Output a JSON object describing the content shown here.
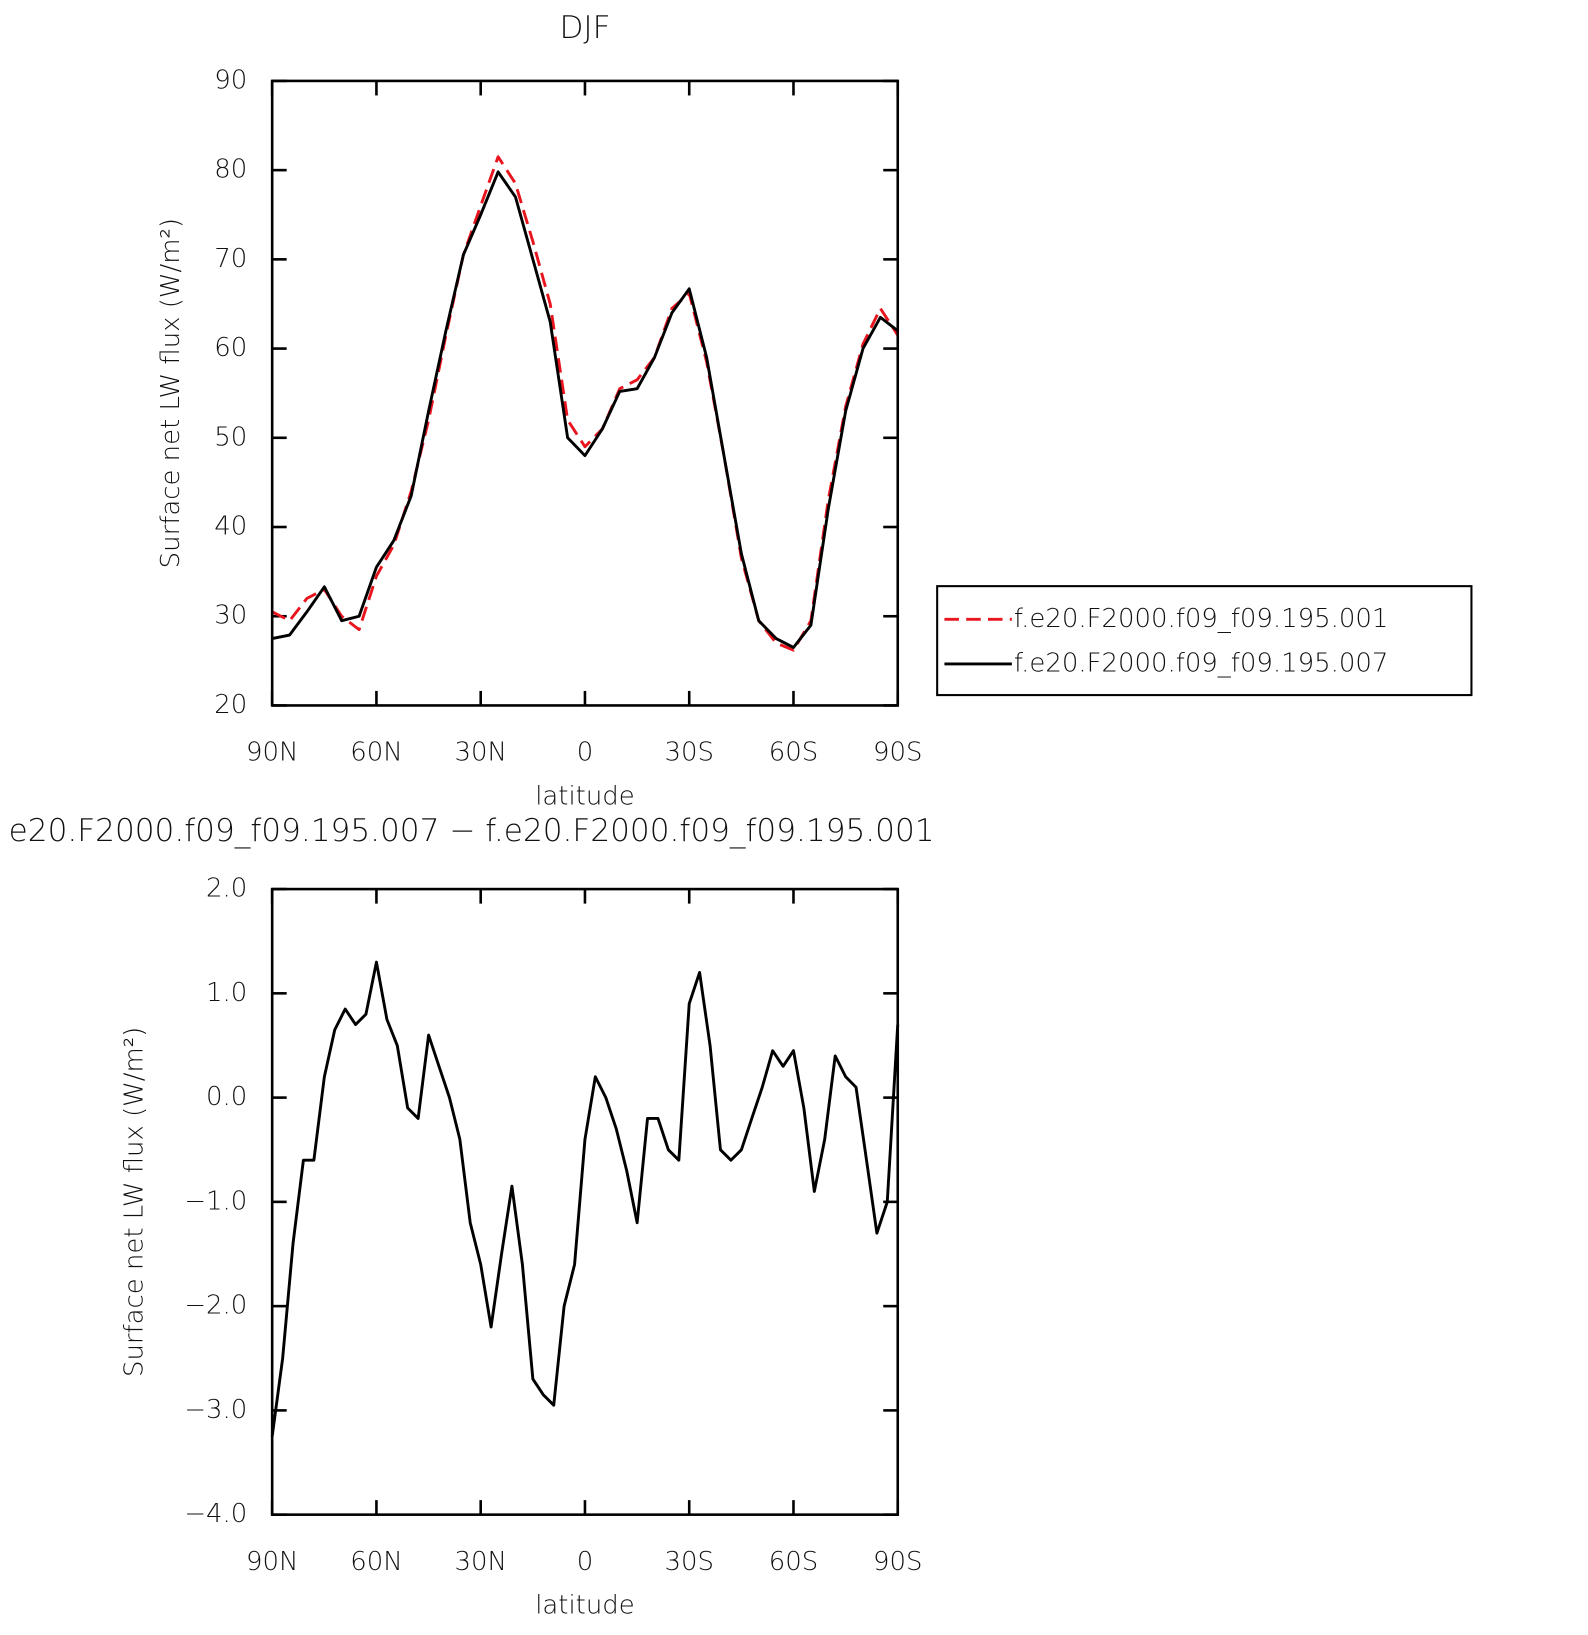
{
  "chart_data": [
    {
      "type": "line",
      "title": "DJF",
      "xlabel": "latitude",
      "ylabel": "Surface net LW flux (W/m²)",
      "x": [
        90,
        85,
        80,
        75,
        70,
        65,
        60,
        55,
        50,
        45,
        40,
        35,
        30,
        25,
        20,
        15,
        10,
        5,
        0,
        -5,
        -10,
        -15,
        -20,
        -25,
        -30,
        -35,
        -40,
        -45,
        -50,
        -55,
        -60,
        -65,
        -70,
        -75,
        -80,
        -85,
        -90
      ],
      "series": [
        {
          "name": "f.e20.F2000.f09_f09.195.001",
          "color": "#e8141e",
          "style": "dashed",
          "values": [
            30.5,
            29.5,
            32,
            33,
            30,
            28.5,
            34.5,
            38,
            44,
            52,
            61.5,
            70.5,
            76,
            81.5,
            78.5,
            72,
            65,
            52,
            49,
            51,
            55.5,
            56.5,
            59,
            64.5,
            66.2,
            58.5,
            48,
            36.5,
            29.5,
            27,
            26.2,
            29.5,
            43,
            53.5,
            60.5,
            64.5,
            61.5
          ]
        },
        {
          "name": "f.e20.F2000.f09_f09.195.007",
          "color": "#000000",
          "style": "solid",
          "values": [
            27.5,
            27.9,
            30.5,
            33.3,
            29.5,
            30,
            35.5,
            38.5,
            43.5,
            53,
            62,
            70.5,
            75,
            79.8,
            77,
            70,
            63,
            50,
            48,
            51,
            55.2,
            55.5,
            59,
            64,
            66.7,
            59,
            48,
            37,
            29.5,
            27.5,
            26.5,
            29,
            42,
            53,
            60,
            63.5,
            62
          ]
        }
      ],
      "xlim": [
        90,
        -90
      ],
      "xticks": [
        {
          "value": 90,
          "label": "90N"
        },
        {
          "value": 60,
          "label": "60N"
        },
        {
          "value": 30,
          "label": "30N"
        },
        0,
        {
          "value": -30,
          "label": "30S"
        },
        {
          "value": -60,
          "label": "60S"
        },
        {
          "value": -90,
          "label": "90S"
        }
      ],
      "ylim": [
        20,
        90
      ],
      "yticks": [
        20,
        30,
        40,
        50,
        60,
        70,
        80,
        90
      ],
      "legend": "right"
    },
    {
      "type": "line",
      "title": "e20.F2000.f09_f09.195.007 − f.e20.F2000.f09_f09.195.001",
      "xlabel": "latitude",
      "ylabel": "Surface net LW flux (W/m²)",
      "x": [
        90,
        87,
        84,
        81,
        78,
        75,
        72,
        69,
        66,
        63,
        60,
        57,
        54,
        51,
        48,
        45,
        42,
        39,
        36,
        33,
        30,
        27,
        24,
        21,
        18,
        15,
        12,
        9,
        6,
        3,
        0,
        -3,
        -6,
        -9,
        -12,
        -15,
        -18,
        -21,
        -24,
        -27,
        -30,
        -33,
        -36,
        -39,
        -42,
        -45,
        -48,
        -51,
        -54,
        -57,
        -60,
        -63,
        -66,
        -69,
        -72,
        -75,
        -78,
        -81,
        -84,
        -87,
        -90
      ],
      "series": [
        {
          "color": "#000000",
          "style": "solid",
          "values": [
            -3.25,
            -2.5,
            -1.4,
            -0.6,
            -0.6,
            0.2,
            0.65,
            0.85,
            0.7,
            0.8,
            1.3,
            0.75,
            0.5,
            -0.1,
            -0.2,
            0.6,
            0.3,
            0.0,
            -0.4,
            -1.2,
            -1.6,
            -2.2,
            -1.5,
            -0.85,
            -1.6,
            -2.7,
            -2.85,
            -2.95,
            -2.0,
            -1.6,
            -0.4,
            0.2,
            0.0,
            -0.3,
            -0.7,
            -1.2,
            -0.2,
            -0.2,
            -0.5,
            -0.6,
            0.9,
            1.2,
            0.5,
            -0.5,
            -0.6,
            -0.5,
            -0.2,
            0.1,
            0.45,
            0.3,
            0.45,
            -0.1,
            -0.9,
            -0.4,
            0.4,
            0.2,
            0.1,
            -0.6,
            -1.3,
            -1.0,
            0.7
          ]
        }
      ],
      "xlim": [
        90,
        -90
      ],
      "xticks": [
        {
          "value": 90,
          "label": "90N"
        },
        {
          "value": 60,
          "label": "60N"
        },
        {
          "value": 30,
          "label": "30N"
        },
        0,
        {
          "value": -30,
          "label": "30S"
        },
        {
          "value": -60,
          "label": "60S"
        },
        {
          "value": -90,
          "label": "90S"
        }
      ],
      "ylim": [
        -4,
        2
      ],
      "yticks": [
        {
          "value": -4,
          "label": "−4.0"
        },
        {
          "value": -3,
          "label": "−3.0"
        },
        {
          "value": -2,
          "label": "−2.0"
        },
        {
          "value": -1,
          "label": "−1.0"
        },
        {
          "value": 0,
          "label": "0.0"
        },
        {
          "value": 1,
          "label": "1.0"
        },
        {
          "value": 2,
          "label": "2.0"
        }
      ]
    }
  ]
}
